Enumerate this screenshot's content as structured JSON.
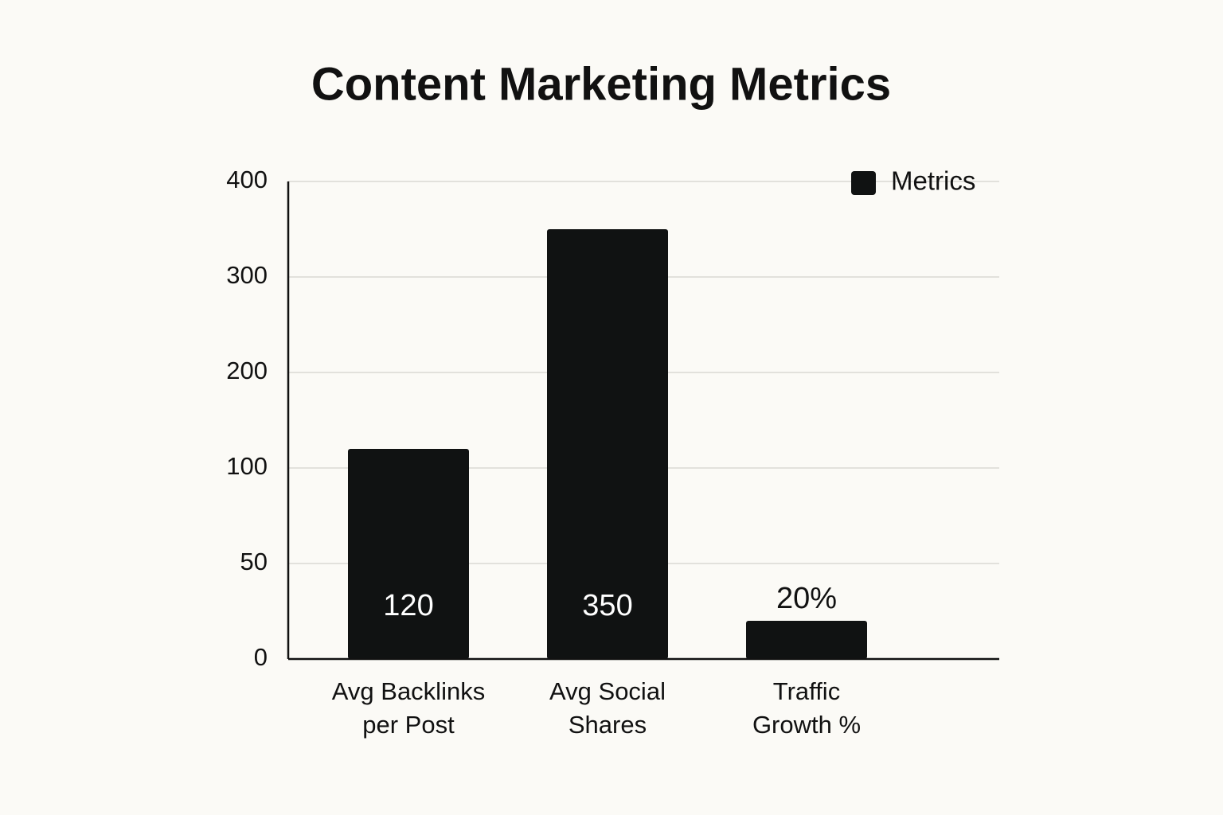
{
  "chart_data": {
    "type": "bar",
    "title": "Content Marketing Metrics",
    "categories": [
      "Avg Backlinks per Post",
      "Avg Social Shares",
      "Traffic Growth %"
    ],
    "series": [
      {
        "name": "Metrics",
        "color": "#101212",
        "values": [
          120,
          350,
          20
        ],
        "value_labels": [
          "120",
          "350",
          "20%"
        ]
      }
    ],
    "ylim": [
      0,
      400
    ],
    "yticks": [
      0,
      50,
      100,
      200,
      300,
      400
    ],
    "grid": true,
    "legend": "upper right"
  }
}
